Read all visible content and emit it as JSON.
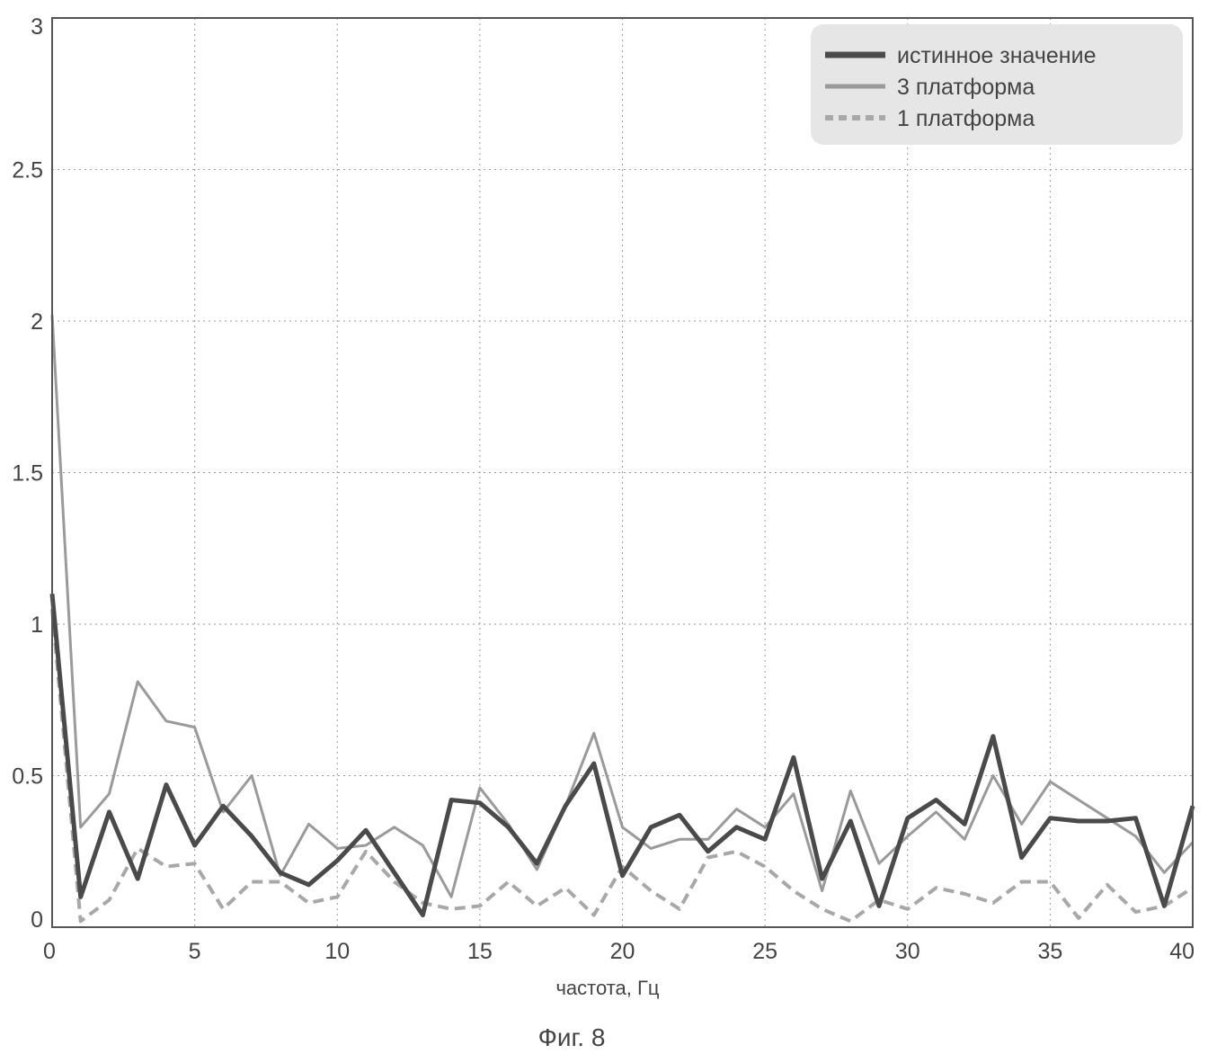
{
  "figure_caption": "Фиг. 8",
  "chart_data": {
    "type": "line",
    "title": "",
    "xlabel": "частота, Гц",
    "ylabel": "",
    "xlim": [
      0,
      40
    ],
    "ylim": [
      0,
      3
    ],
    "x_ticks": [
      "0",
      "5",
      "10",
      "15",
      "20",
      "25",
      "30",
      "35",
      "40"
    ],
    "y_ticks": [
      "0",
      "0.5",
      "1",
      "1.5",
      "2",
      "2.5",
      "3"
    ],
    "grid": true,
    "legend_position": "top-right",
    "x": [
      0,
      1,
      2,
      3,
      4,
      5,
      6,
      7,
      8,
      9,
      10,
      11,
      12,
      13,
      14,
      15,
      16,
      17,
      18,
      19,
      20,
      21,
      22,
      23,
      24,
      25,
      26,
      27,
      28,
      29,
      30,
      31,
      32,
      33,
      34,
      35,
      36,
      37,
      38,
      39,
      40
    ],
    "series": [
      {
        "name": "истинное значение",
        "style": "thick-solid",
        "color": "#4a4a4a",
        "values": [
          1.1,
          0.1,
          0.38,
          0.16,
          0.47,
          0.27,
          0.4,
          0.3,
          0.18,
          0.14,
          0.22,
          0.32,
          0.18,
          0.04,
          0.42,
          0.41,
          0.33,
          0.21,
          0.4,
          0.54,
          0.17,
          0.33,
          0.37,
          0.25,
          0.33,
          0.29,
          0.56,
          0.16,
          0.35,
          0.07,
          0.36,
          0.42,
          0.34,
          0.63,
          0.23,
          0.36,
          0.35,
          0.35,
          0.36,
          0.07,
          0.4
        ]
      },
      {
        "name": "3 платформа",
        "style": "solid",
        "color": "#9a9a9a",
        "values": [
          2.02,
          0.33,
          0.44,
          0.81,
          0.68,
          0.66,
          0.38,
          0.5,
          0.17,
          0.34,
          0.26,
          0.27,
          0.33,
          0.27,
          0.1,
          0.46,
          0.34,
          0.19,
          0.4,
          0.64,
          0.33,
          0.26,
          0.29,
          0.29,
          0.39,
          0.33,
          0.44,
          0.12,
          0.45,
          0.21,
          0.3,
          0.38,
          0.29,
          0.5,
          0.34,
          0.48,
          0.42,
          0.36,
          0.3,
          0.18,
          0.28
        ]
      },
      {
        "name": "1 платформа",
        "style": "dashed",
        "color": "#a8a8a8",
        "values": [
          1.05,
          0.02,
          0.09,
          0.26,
          0.2,
          0.21,
          0.06,
          0.15,
          0.15,
          0.08,
          0.1,
          0.25,
          0.15,
          0.08,
          0.06,
          0.07,
          0.15,
          0.07,
          0.13,
          0.04,
          0.2,
          0.12,
          0.06,
          0.23,
          0.25,
          0.2,
          0.12,
          0.06,
          0.02,
          0.09,
          0.06,
          0.13,
          0.11,
          0.08,
          0.15,
          0.15,
          0.03,
          0.14,
          0.05,
          0.07,
          0.13
        ]
      }
    ]
  }
}
